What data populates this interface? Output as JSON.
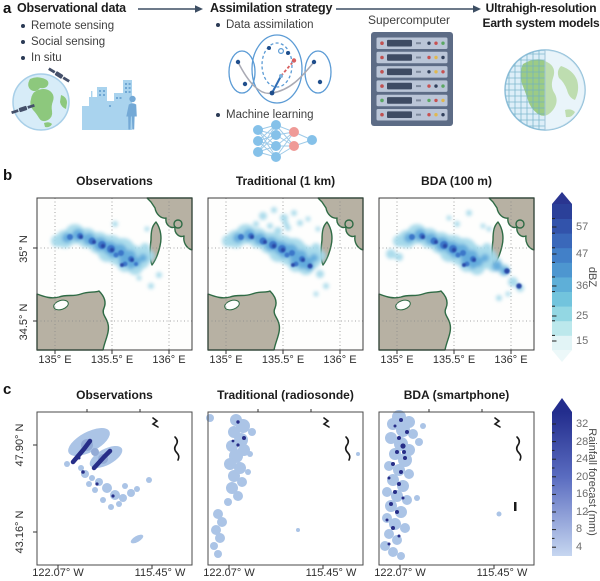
{
  "figure_labels": {
    "a": "a",
    "b": "b",
    "c": "c"
  },
  "panel_a": {
    "observational": {
      "title": "Observational data",
      "items": [
        "Remote sensing",
        "Social sensing",
        "In situ"
      ],
      "icons": [
        "globe-satellites-icon",
        "city-sensing-icon"
      ]
    },
    "assimilation": {
      "title": "Assimilation strategy",
      "items": [
        "Data assimilation",
        "Machine learning"
      ],
      "icons": [
        "ensemble-ellipses-icon",
        "neural-network-icon"
      ]
    },
    "supercomputer_label": "Supercomputer",
    "supercomputer_icon": "server-rack-icon",
    "models_title": [
      "Ultrahigh-resolution",
      "Earth system models"
    ],
    "models_icon": "gridded-globe-icon"
  },
  "panel_b": {
    "maps": [
      {
        "title": "Observations"
      },
      {
        "title": "Traditional (1 km)"
      },
      {
        "title": "BDA (100 m)"
      }
    ],
    "y_tick_labels": [
      "35° N",
      "34.5° N"
    ],
    "x_tick_labels": [
      "135° E",
      "135.5° E",
      "136° E"
    ],
    "colorbar": {
      "unit_label": "dBZ",
      "tick_labels": [
        "57",
        "47",
        "36",
        "25",
        "15"
      ],
      "scale_colors": [
        "#e2f4f6",
        "#bce8ec",
        "#93d7e3",
        "#72c4dd",
        "#5eafd8",
        "#4d96d0",
        "#4280c8",
        "#3a68ba",
        "#3253ab",
        "#2b4099"
      ],
      "arrow_top_color": "#2a3590",
      "arrow_bottom_color": "#ecf8f9"
    }
  },
  "panel_c": {
    "maps": [
      {
        "title": "Observations"
      },
      {
        "title": "Traditional (radiosonde)"
      },
      {
        "title": "BDA (smartphone)"
      }
    ],
    "y_tick_labels": [
      "47.90° N",
      "43.16° N"
    ],
    "x_tick_labels": [
      "122.07° W",
      "115.45° W"
    ],
    "colorbar": {
      "unit_label": "Rainfall forecast (mm)",
      "tick_labels": [
        "32",
        "28",
        "24",
        "20",
        "16",
        "12",
        "8",
        "4"
      ],
      "gradient_top": "#232d8d",
      "gradient_mid": "#5a6cc0",
      "gradient_bottom": "#c6d6f0"
    }
  },
  "colors": {
    "flow_arrow": "#3d4e63",
    "land_fill": "#b7b1a3",
    "coast_stroke": "#2f6b45",
    "gridline": "#8a8a8a",
    "radar_light": "#a3d8ea",
    "radar_mid": "#5fa8dc",
    "radar_dark": "#3a74c8",
    "radar_navy": "#2a4aa8",
    "rain_light": "#abc4e6",
    "rain_dark": "#272e88"
  },
  "chart_data": [
    {
      "type": "heatmap",
      "panel": "b",
      "maps": [
        "Observations",
        "Traditional (1 km)",
        "BDA (100 m)"
      ],
      "x_ticks": [
        "135° E",
        "135.5° E",
        "136° E"
      ],
      "y_ticks": [
        "35° N",
        "34.5° N"
      ],
      "colorbar_label": "dBZ",
      "colorbar_ticks": [
        15,
        25,
        36,
        47,
        57
      ]
    },
    {
      "type": "heatmap",
      "panel": "c",
      "maps": [
        "Observations",
        "Traditional (radiosonde)",
        "BDA (smartphone)"
      ],
      "x_ticks": [
        "122.07° W",
        "115.45° W"
      ],
      "y_ticks": [
        "47.90° N",
        "43.16° N"
      ],
      "colorbar_label": "Rainfall forecast (mm)",
      "colorbar_ticks": [
        4,
        8,
        12,
        16,
        20,
        24,
        28,
        32
      ]
    }
  ]
}
